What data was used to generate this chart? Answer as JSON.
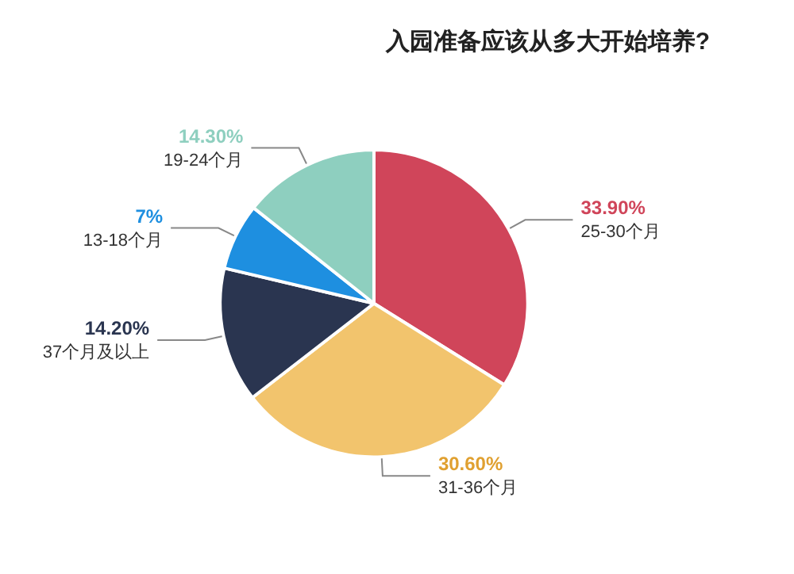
{
  "chart_data": {
    "type": "pie",
    "title": "入园准备应该从多大开始培养?",
    "categories": [
      "25-30个月",
      "31-36个月",
      "37个月及以上",
      "13-18个月",
      "19-24个月"
    ],
    "values": [
      33.9,
      30.6,
      14.2,
      7,
      14.3
    ],
    "value_labels": [
      "33.90%",
      "30.60%",
      "14.20%",
      "7%",
      "14.30%"
    ],
    "colors": [
      "#d0455a",
      "#f2c46d",
      "#2a3550",
      "#1e8fe0",
      "#8ecfbf"
    ],
    "legend": false
  }
}
